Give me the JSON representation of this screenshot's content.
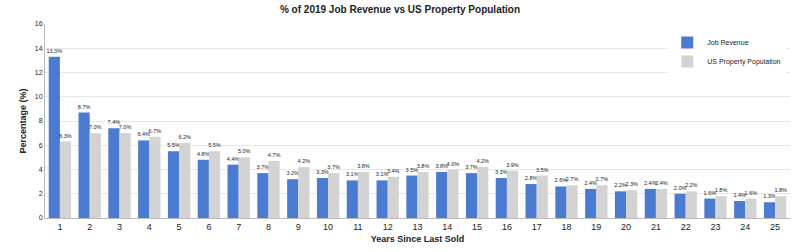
{
  "chart_data": {
    "type": "bar",
    "title": "% of 2019 Job Revenue vs US Property Population",
    "x_label": "Years Since Last Sold",
    "y_label": "Percentage (%)",
    "categories": [
      "1",
      "2",
      "3",
      "4",
      "5",
      "6",
      "7",
      "8",
      "9",
      "10",
      "11",
      "12",
      "13",
      "14",
      "15",
      "16",
      "17",
      "18",
      "19",
      "20",
      "21",
      "22",
      "23",
      "24",
      "25"
    ],
    "series": [
      {
        "name": "Job Revenue",
        "color": "#4a7bd0",
        "values": [
          13.3,
          8.7,
          7.4,
          6.4,
          5.5,
          4.8,
          4.4,
          3.7,
          3.2,
          3.3,
          3.1,
          3.1,
          3.5,
          3.8,
          3.7,
          3.3,
          2.8,
          2.6,
          2.4,
          2.2,
          2.4,
          2.0,
          1.6,
          1.4,
          1.3
        ],
        "value_labels": [
          "13.3%",
          "8.7%",
          "7.4%",
          "6.4%",
          "5.5%",
          "4.8%",
          "4.4%",
          "3.7%",
          "3.2%",
          "3.3%",
          "3.1%",
          "3.1%",
          "3.5%",
          "3.8%",
          "3.7%",
          "3.3%",
          "2.8%",
          "2.6%",
          "2.4%",
          "2.2%",
          "2.4%",
          "2.0%",
          "1.6%",
          "1.4%",
          "1.3%"
        ]
      },
      {
        "name": "US Property Population",
        "color": "#d3d3d3",
        "values": [
          6.3,
          7.0,
          7.0,
          6.7,
          6.2,
          5.5,
          5.0,
          4.7,
          4.2,
          3.7,
          3.8,
          3.4,
          3.8,
          4.0,
          4.2,
          3.9,
          3.5,
          2.7,
          2.7,
          2.3,
          2.4,
          2.2,
          1.8,
          1.6,
          1.8
        ],
        "value_labels": [
          "6.3%",
          "7.0%",
          "7.0%",
          "6.7%",
          "6.2%",
          "5.5%",
          "5.0%",
          "4.7%",
          "4.2%",
          "3.7%",
          "3.8%",
          "3.4%",
          "3.8%",
          "4.0%",
          "4.2%",
          "3.9%",
          "3.5%",
          "2.7%",
          "2.7%",
          "2.3%",
          "2.4%",
          "2.2%",
          "1.8%",
          "1.6%",
          "1.8%"
        ]
      }
    ],
    "ylim": [
      0,
      16
    ],
    "yticks": [
      0,
      2,
      4,
      6,
      8,
      10,
      12,
      14,
      16
    ],
    "grid": true,
    "legend": "top-right",
    "data_labels": true
  }
}
